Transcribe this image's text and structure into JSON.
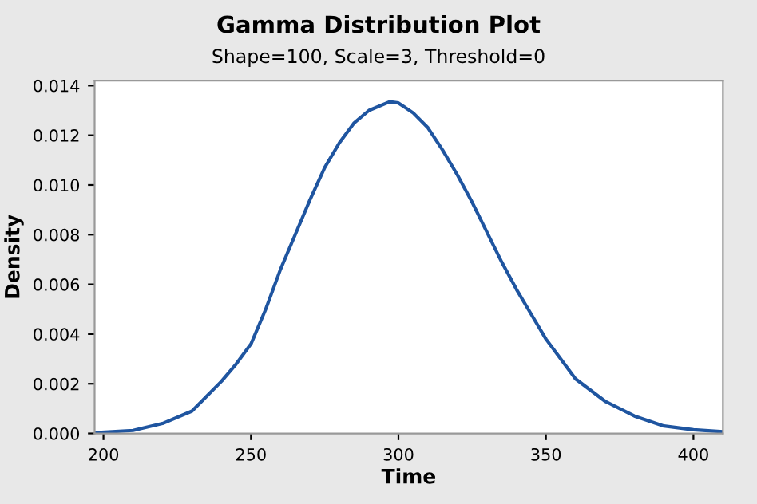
{
  "chart_data": {
    "type": "line",
    "title": "Gamma Distribution Plot",
    "subtitle": "Shape=100, Scale=3, Threshold=0",
    "xlabel": "Time",
    "ylabel": "Density",
    "series": [
      {
        "color": "#1f55a0",
        "x": [
          197,
          210,
          220,
          230,
          240,
          245,
          250,
          255,
          260,
          265,
          270,
          275,
          280,
          285,
          290,
          297,
          300,
          305,
          310,
          315,
          320,
          325,
          330,
          335,
          340,
          345,
          350,
          355,
          360,
          370,
          380,
          390,
          400,
          410
        ],
        "values": [
          3e-05,
          0.00012,
          0.0004,
          0.0009,
          0.0021,
          0.0028,
          0.0036,
          0.005,
          0.0066,
          0.008,
          0.0094,
          0.0107,
          0.0117,
          0.0125,
          0.013,
          0.01335,
          0.0133,
          0.0129,
          0.0123,
          0.0114,
          0.0104,
          0.0093,
          0.0081,
          0.0069,
          0.0058,
          0.0048,
          0.0038,
          0.003,
          0.0022,
          0.0013,
          0.0007,
          0.0003,
          0.00015,
          7e-05
        ]
      }
    ],
    "xlim": [
      197,
      410
    ],
    "ylim": [
      0,
      0.0142
    ],
    "xticks": [
      200,
      250,
      300,
      350,
      400
    ],
    "yticks": [
      {
        "value": 0,
        "label": "0.000"
      },
      {
        "value": 0.002,
        "label": "0.002"
      },
      {
        "value": 0.004,
        "label": "0.004"
      },
      {
        "value": 0.006,
        "label": "0.006"
      },
      {
        "value": 0.008,
        "label": "0.008"
      },
      {
        "value": 0.01,
        "label": "0.010"
      },
      {
        "value": 0.012,
        "label": "0.012"
      },
      {
        "value": 0.014,
        "label": "0.014"
      }
    ],
    "grid": false,
    "legend": false,
    "marker": "none",
    "line_style": "solid"
  }
}
